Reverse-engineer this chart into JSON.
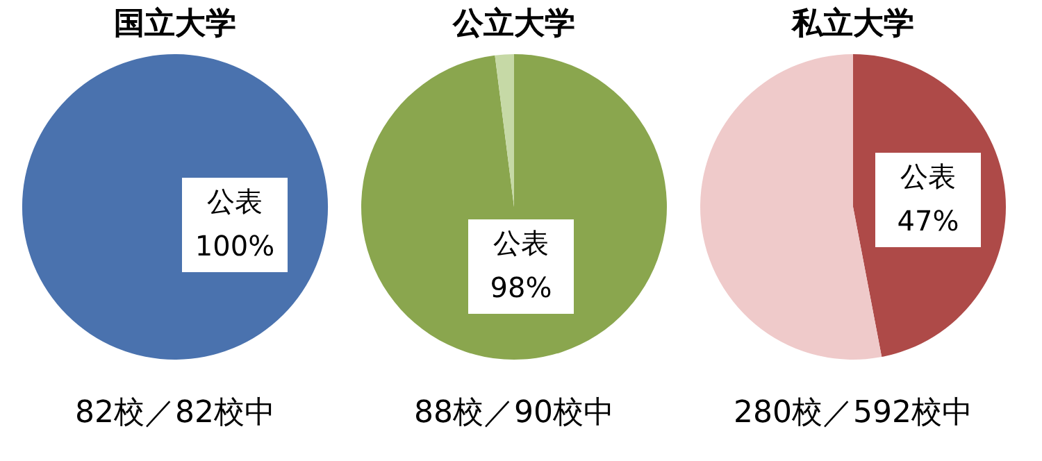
{
  "chart_data": [
    {
      "type": "pie",
      "title": "国立大学",
      "categories": [
        "公表"
      ],
      "values": [
        100
      ],
      "colors": [
        "#4a72ae"
      ],
      "value_labels": [
        "100%"
      ],
      "annotations": [
        "82校／82校中"
      ]
    },
    {
      "type": "pie",
      "title": "公立大学",
      "categories": [
        "公表",
        null
      ],
      "values": [
        98,
        2
      ],
      "colors": [
        "#8aa64e",
        "#c6d9a6"
      ],
      "value_labels": [
        "98%",
        null
      ],
      "annotations": [
        "88校／90校中"
      ]
    },
    {
      "type": "pie",
      "title": "私立大学",
      "categories": [
        "公表",
        null
      ],
      "values": [
        47,
        53
      ],
      "colors": [
        "#ae4a48",
        "#efcaca"
      ],
      "value_labels": [
        "47%",
        null
      ],
      "annotations": [
        "280校／592校中"
      ]
    }
  ]
}
